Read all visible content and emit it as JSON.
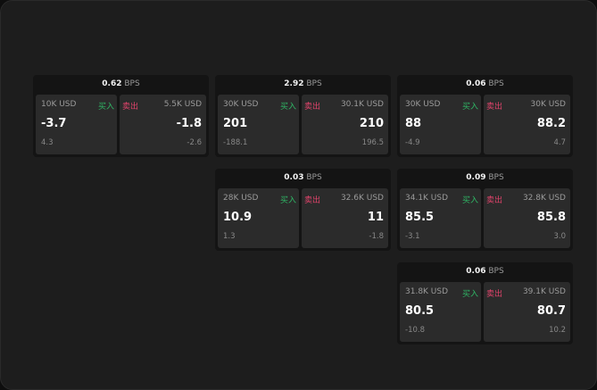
{
  "labels": {
    "buy": "买入",
    "sell": "卖出",
    "unit": "BPS"
  },
  "colors": {
    "buy": "#2fb665",
    "sell": "#e0436b"
  },
  "widgets": [
    {
      "spread": "0.62",
      "bid_qty": "10K USD",
      "bid": "-3.7",
      "bid_chg": "4.3",
      "ask_qty": "5.5K USD",
      "ask": "-1.8",
      "ask_chg": "-2.6"
    },
    {
      "spread": "2.92",
      "bid_qty": "30K USD",
      "bid": "201",
      "bid_chg": "-188.1",
      "ask_qty": "30.1K USD",
      "ask": "210",
      "ask_chg": "196.5"
    },
    {
      "spread": "0.06",
      "bid_qty": "30K USD",
      "bid": "88",
      "bid_chg": "-4.9",
      "ask_qty": "30K USD",
      "ask": "88.2",
      "ask_chg": "4.7"
    },
    {
      "spread": "0.03",
      "bid_qty": "28K USD",
      "bid": "10.9",
      "bid_chg": "1.3",
      "ask_qty": "32.6K USD",
      "ask": "11",
      "ask_chg": "-1.8"
    },
    {
      "spread": "0.09",
      "bid_qty": "34.1K USD",
      "bid": "85.5",
      "bid_chg": "-3.1",
      "ask_qty": "32.8K USD",
      "ask": "85.8",
      "ask_chg": "3.0"
    },
    {
      "spread": "0.06",
      "bid_qty": "31.8K USD",
      "bid": "80.5",
      "bid_chg": "-10.8",
      "ask_qty": "39.1K USD",
      "ask": "80.7",
      "ask_chg": "10.2"
    }
  ]
}
